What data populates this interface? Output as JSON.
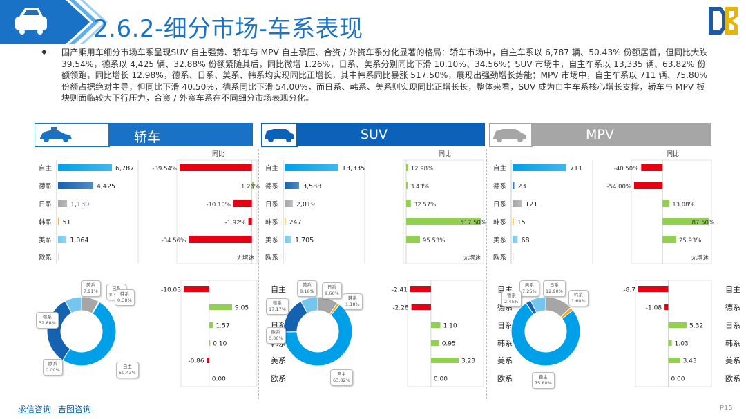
{
  "title": "2.6.2-细分市场-车系表现",
  "summary": "国产乘用车细分市场车系呈现SUV 自主强势、轿车与 MPV 自主承压、合资 / 外资车系分化显著的格局：轿车市场中，自主车系以 6,787 辆、50.43% 份额居首，但同比大跌 39.54%，德系以 4,425 辆、32.88% 份额紧随其后，同比微增 1.26%，日系、美系分别同比下滑 10.10%、34.56%；SUV 市场中，自主车系以 13,335 辆、63.82% 份额领跑，同比增长 12.98%，德系、日系、美系、韩系均实现同比正增长，其中韩系同比暴涨 517.50%，展现出强劲增长势能；MPV 市场中，自主车系以 711 辆、75.80% 份额占据绝对主导，但同比下滑 40.50%，德系同比下滑 54.00%，而日系、韩系、美系则实现同比正增长长，整体来看，SUV 成为自主车系核心增长支撑，轿车与 MPV 板块则面临较大下行压力，合资 / 外资车系在不同细分市场表现分化。",
  "footer": {
    "link1": "求信咨询",
    "link2": "吉图咨询"
  },
  "page_number": "P15",
  "colors": {
    "title": "#1a72c6",
    "sedan_header": "#1a72c6",
    "suv_header": "#0c62b8",
    "mpv_header": "#a6a6a6",
    "negative": "#e60012",
    "positive": "#92d050",
    "zizhu": "#00a0e9",
    "dexi": "#1563b0",
    "rixi": "#a6a6a6",
    "hanxi": "#f5a623",
    "meixi": "#74c6ee"
  },
  "tongbi_label": "同比",
  "no_growth_label": "无增速",
  "categories": [
    "自主",
    "德系",
    "日系",
    "韩系",
    "美系",
    "欧系"
  ],
  "panels": [
    {
      "name": "轿车",
      "sales": [
        6787,
        4425,
        1130,
        51,
        1064,
        0
      ],
      "sales_labels": [
        "6,787",
        "4,425",
        "1,130",
        "51",
        "1,064",
        ""
      ],
      "yoy": [
        -39.54,
        1.26,
        -10.1,
        -1.92,
        -34.56,
        null
      ],
      "yoy_labels": [
        "-39.54%",
        "1.26%",
        "-10.10%",
        "-1.92%",
        "-34.56%",
        "无增速"
      ],
      "donut": [
        {
          "name": "自主",
          "pct": "50.43%",
          "value": 50.43
        },
        {
          "name": "德系",
          "pct": "32.88%",
          "value": 32.88
        },
        {
          "name": "日系",
          "pct": "8.40%",
          "value": 8.4
        },
        {
          "name": "韩系",
          "pct": "0.38%",
          "value": 0.38
        },
        {
          "name": "美系",
          "pct": "7.91%",
          "value": 7.91
        },
        {
          "name": "欧系",
          "pct": "0.00%",
          "value": 0.0
        }
      ],
      "change": [
        -10.03,
        9.05,
        1.57,
        0.1,
        -0.86,
        0.0
      ],
      "change_labels": [
        "-10.03",
        "9.05",
        "1.57",
        "0.10",
        "-0.86",
        "0.00"
      ]
    },
    {
      "name": "SUV",
      "sales": [
        13335,
        3588,
        2019,
        247,
        1705,
        0
      ],
      "sales_labels": [
        "13,335",
        "3,588",
        "2,019",
        "247",
        "1,705",
        ""
      ],
      "yoy": [
        12.98,
        3.43,
        32.57,
        517.5,
        95.53,
        null
      ],
      "yoy_labels": [
        "12.98%",
        "3.43%",
        "32.57%",
        "517.50%",
        "95.53%",
        "无增速"
      ],
      "donut": [
        {
          "name": "自主",
          "pct": "63.82%",
          "value": 63.82
        },
        {
          "name": "德系",
          "pct": "17.17%",
          "value": 17.17
        },
        {
          "name": "日系",
          "pct": "9.66%",
          "value": 9.66
        },
        {
          "name": "韩系",
          "pct": "1.18%",
          "value": 1.18
        },
        {
          "name": "美系",
          "pct": "8.16%",
          "value": 8.16
        },
        {
          "name": "欧系",
          "pct": "0.00%",
          "value": 0.0
        }
      ],
      "change": [
        -2.41,
        -2.28,
        1.1,
        0.95,
        3.23,
        0.0
      ],
      "change_labels": [
        "-2.41",
        "-2.28",
        "1.10",
        "0.95",
        "3.23",
        "0.00"
      ]
    },
    {
      "name": "MPV",
      "sales": [
        711,
        23,
        121,
        15,
        68,
        0
      ],
      "sales_labels": [
        "711",
        "23",
        "121",
        "15",
        "68",
        ""
      ],
      "yoy": [
        -40.5,
        -54.0,
        13.08,
        87.5,
        25.93,
        null
      ],
      "yoy_labels": [
        "-40.50%",
        "-54.00%",
        "13.08%",
        "87.50%",
        "25.93%",
        "无增速"
      ],
      "donut": [
        {
          "name": "自主",
          "pct": "75.80%",
          "value": 75.8
        },
        {
          "name": "德系",
          "pct": "2.45%",
          "value": 2.45
        },
        {
          "name": "日系",
          "pct": "12.90%",
          "value": 12.9
        },
        {
          "name": "韩系",
          "pct": "1.60%",
          "value": 1.6
        },
        {
          "name": "美系",
          "pct": "7.25%",
          "value": 7.25
        },
        {
          "name": "欧系",
          "pct": "0.00%",
          "value": 0.0
        }
      ],
      "change": [
        -8.72,
        -1.08,
        5.32,
        1.03,
        3.43,
        0.0
      ],
      "change_labels": [
        "-8.7",
        "-1.08",
        "5.32",
        "1.03",
        "3.43",
        "0.00"
      ]
    }
  ]
}
